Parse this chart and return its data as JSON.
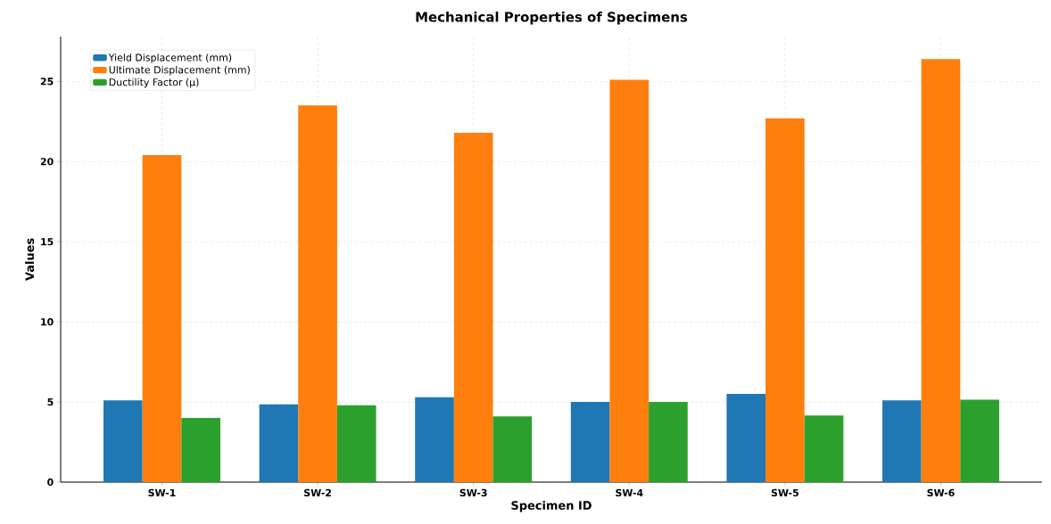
{
  "chart_data": {
    "type": "bar",
    "title": "Mechanical Properties of Specimens",
    "xlabel": "Specimen ID",
    "ylabel": "Values",
    "categories": [
      "SW-1",
      "SW-2",
      "SW-3",
      "SW-4",
      "SW-5",
      "SW-6"
    ],
    "series": [
      {
        "name": "Yield Displacement (mm)",
        "color": "#1f77b4",
        "values": [
          5.1,
          4.85,
          5.3,
          5.0,
          5.5,
          5.1
        ]
      },
      {
        "name": "Ultimate Displacement (mm)",
        "color": "#ff7f0e",
        "values": [
          20.4,
          23.5,
          21.8,
          25.1,
          22.7,
          26.4
        ]
      },
      {
        "name": "Ductility Factor (μ)",
        "color": "#2ca02c",
        "values": [
          4.0,
          4.8,
          4.1,
          5.0,
          4.15,
          5.15
        ]
      }
    ],
    "ylim": [
      0,
      27.8
    ],
    "yticks": [
      0,
      5,
      10,
      15,
      20,
      25
    ],
    "grid": true,
    "legend": "top left"
  }
}
